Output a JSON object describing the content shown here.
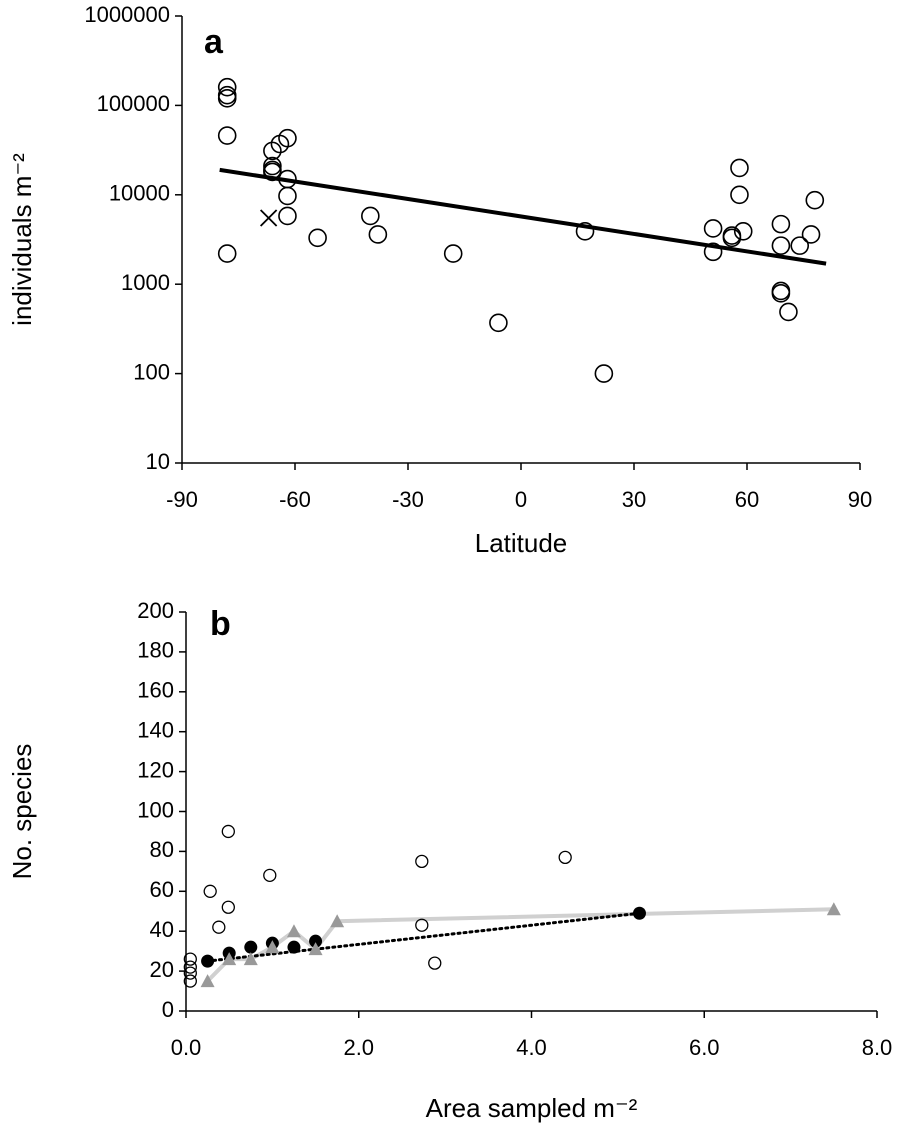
{
  "chart_data": [
    {
      "type": "scatter",
      "label": "a",
      "xlabel": "Latitude",
      "ylabel": "individuals m⁻²",
      "yscale": "log",
      "xlim": [
        -90,
        90
      ],
      "xticks": [
        -90,
        -60,
        -30,
        0,
        30,
        60,
        90
      ],
      "ylim": [
        10,
        1000000
      ],
      "yticks": [
        10,
        100,
        1000,
        10000,
        100000,
        1000000
      ],
      "series": [
        {
          "marker": "open-circle",
          "color": "#000000",
          "x": [
            -78,
            -78,
            -78,
            -78,
            -78,
            -66,
            -66,
            -66,
            -66,
            -64,
            -62,
            -62,
            -62,
            -62,
            -54,
            -40,
            -38,
            -18,
            -6,
            17,
            22,
            51,
            51,
            56,
            56,
            58,
            58,
            59,
            69,
            69,
            69,
            69,
            71,
            74,
            77,
            78
          ],
          "values": [
            160000,
            130000,
            120000,
            46000,
            2200,
            31000,
            21000,
            19000,
            18000,
            37000,
            43000,
            15000,
            9700,
            5800,
            3300,
            5800,
            3600,
            2200,
            370,
            3900,
            100,
            4200,
            2300,
            3500,
            3300,
            20000,
            10000,
            3900,
            4700,
            2700,
            840,
            790,
            490,
            2700,
            3600,
            8700
          ]
        },
        {
          "marker": "cross",
          "color": "#000000",
          "x": [
            -67
          ],
          "values": [
            5500
          ]
        },
        {
          "marker": "none",
          "line": "solid",
          "color": "#000000",
          "x": [
            -80,
            81
          ],
          "values": [
            19000,
            1700
          ]
        }
      ]
    },
    {
      "type": "scatter",
      "label": "b",
      "xlabel": "Area sampled m⁻²",
      "ylabel": "No. species",
      "yscale": "linear",
      "xlim": [
        0,
        8
      ],
      "xticks": [
        {
          "value": 0,
          "label": "0.0"
        },
        {
          "value": 2,
          "label": "2.0"
        },
        {
          "value": 4,
          "label": "4.0"
        },
        {
          "value": 6,
          "label": "6.0"
        },
        {
          "value": 8,
          "label": "8.0"
        }
      ],
      "ylim": [
        0,
        200
      ],
      "yticks": [
        0,
        20,
        40,
        60,
        80,
        100,
        120,
        140,
        160,
        180,
        200
      ],
      "series": [
        {
          "marker": "none",
          "line": "solid",
          "color": "#d0d0d0",
          "x": [
            0.25,
            0.5,
            0.75,
            1.0,
            1.25,
            1.5,
            1.75,
            7.5
          ],
          "values": [
            15,
            26,
            26,
            32,
            40,
            31,
            45,
            51
          ]
        },
        {
          "marker": "none",
          "line": "dotted",
          "color": "#000000",
          "x": [
            0.25,
            5.25
          ],
          "values": [
            25,
            49
          ]
        },
        {
          "marker": "small-open-circle",
          "color": "#000000",
          "x": [
            0.05,
            0.05,
            0.05,
            0.05,
            0.28,
            0.38,
            0.49,
            0.49,
            0.97,
            2.73,
            2.73,
            2.88,
            4.39
          ],
          "values": [
            26,
            22,
            19,
            15,
            60,
            42,
            52,
            90,
            68,
            75,
            43,
            24,
            77
          ]
        },
        {
          "marker": "filled-circle",
          "color": "#000000",
          "x": [
            0.25,
            0.5,
            0.75,
            1.0,
            1.25,
            1.5,
            5.25
          ],
          "values": [
            25,
            29,
            32,
            34,
            32,
            35,
            49
          ]
        },
        {
          "marker": "triangle",
          "color": "#999999",
          "x": [
            0.25,
            0.5,
            0.75,
            1.0,
            1.25,
            1.5,
            1.75,
            7.5
          ],
          "values": [
            15,
            26,
            26,
            32,
            40,
            31,
            45,
            51
          ]
        }
      ]
    }
  ]
}
